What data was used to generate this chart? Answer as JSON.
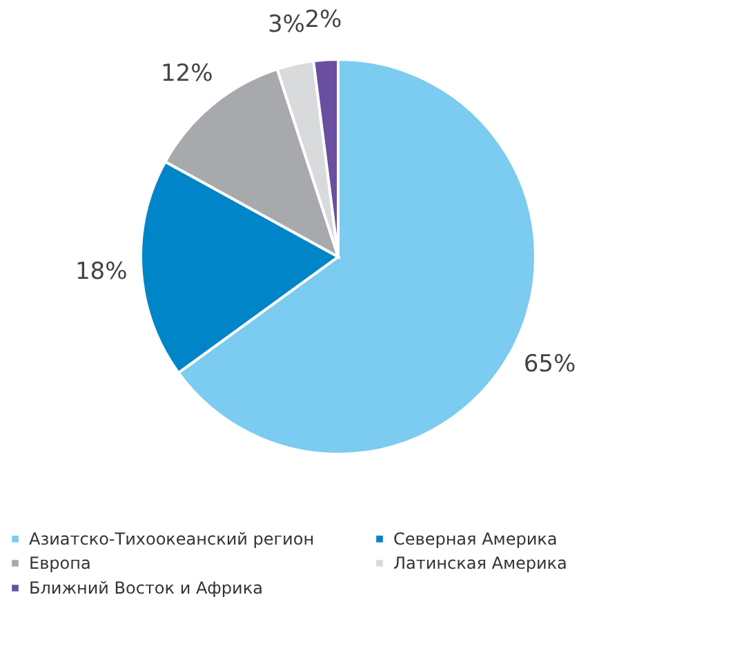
{
  "chart_data": {
    "type": "pie",
    "categories": [
      "Азиатско-Тихоокеанский регион",
      "Северная Америка",
      "Европа",
      "Латинская Америка",
      "Ближний Восток и Африка"
    ],
    "values": [
      65,
      18,
      12,
      3,
      2
    ],
    "colors": [
      "#7ccbf0",
      "#0085c8",
      "#a7a9ac",
      "#d9dadb",
      "#6a4fa0"
    ],
    "value_labels": [
      "65%",
      "18%",
      "12%",
      "3%",
      "2%"
    ],
    "legend": "bottom"
  }
}
